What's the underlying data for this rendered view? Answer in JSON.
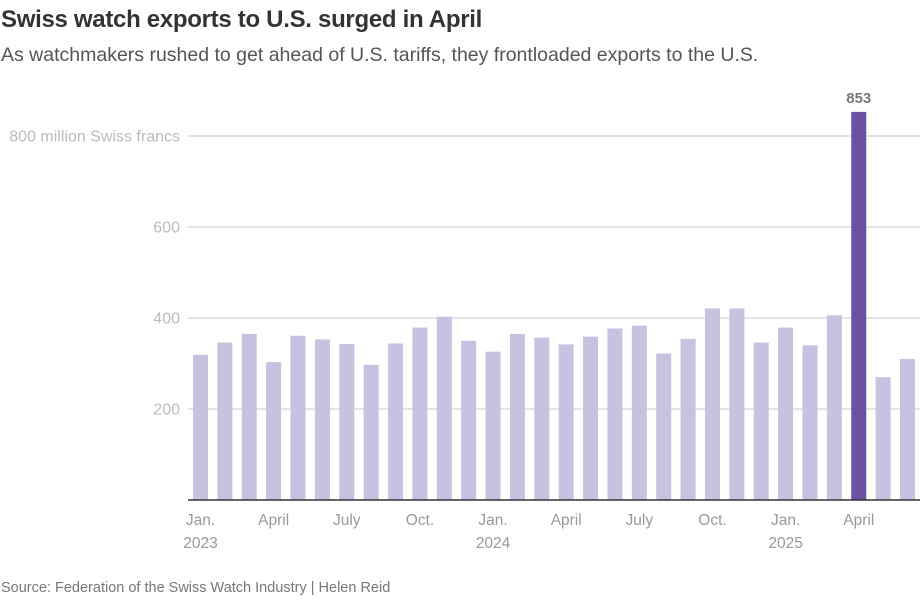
{
  "chart_data": {
    "type": "bar",
    "title": "Swiss watch exports to U.S. surged in April",
    "subtitle": "As watchmakers rushed to get ahead of U.S. tariffs, they frontloaded exports to the U.S.",
    "source": "Source: Federation of the Swiss Watch Industry | Helen Reid",
    "xlabel": "",
    "ylabel": "million Swiss francs",
    "ylim": [
      0,
      853
    ],
    "grid": true,
    "yticks": [
      {
        "value": 800,
        "label": "800 million Swiss francs"
      },
      {
        "value": 600,
        "label": "600"
      },
      {
        "value": 400,
        "label": "400"
      },
      {
        "value": 200,
        "label": "200"
      }
    ],
    "categories": [
      "2023-01",
      "2023-02",
      "2023-03",
      "2023-04",
      "2023-05",
      "2023-06",
      "2023-07",
      "2023-08",
      "2023-09",
      "2023-10",
      "2023-11",
      "2023-12",
      "2024-01",
      "2024-02",
      "2024-03",
      "2024-04",
      "2024-05",
      "2024-06",
      "2024-07",
      "2024-08",
      "2024-09",
      "2024-10",
      "2024-11",
      "2024-12",
      "2025-01",
      "2025-02",
      "2025-03",
      "2025-04",
      "2025-05",
      "2025-06"
    ],
    "values": [
      319,
      346,
      365,
      303,
      361,
      353,
      343,
      297,
      344,
      379,
      403,
      350,
      326,
      365,
      357,
      342,
      359,
      377,
      383,
      322,
      354,
      421,
      421,
      346,
      379,
      340,
      406,
      853,
      270,
      310
    ],
    "highlight_index": 27,
    "highlight_label": "853",
    "xticks": [
      {
        "index": 0,
        "line1": "Jan.",
        "line2": "2023"
      },
      {
        "index": 3,
        "line1": "April",
        "line2": ""
      },
      {
        "index": 6,
        "line1": "July",
        "line2": ""
      },
      {
        "index": 9,
        "line1": "Oct.",
        "line2": ""
      },
      {
        "index": 12,
        "line1": "Jan.",
        "line2": "2024"
      },
      {
        "index": 15,
        "line1": "April",
        "line2": ""
      },
      {
        "index": 18,
        "line1": "July",
        "line2": ""
      },
      {
        "index": 21,
        "line1": "Oct.",
        "line2": ""
      },
      {
        "index": 24,
        "line1": "Jan.",
        "line2": "2025"
      },
      {
        "index": 27,
        "line1": "April",
        "line2": ""
      }
    ],
    "colors": {
      "bar": "#c8c2e0",
      "highlight": "#6a51a3",
      "grid": "#d4d4d4",
      "axis": "#333333"
    }
  }
}
